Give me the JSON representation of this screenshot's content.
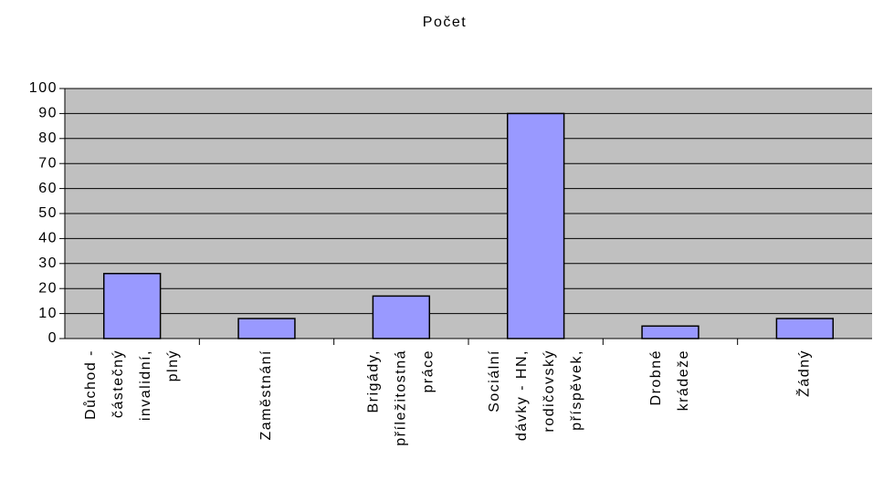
{
  "chart_data": {
    "type": "bar",
    "title": "Počet",
    "categories": [
      [
        "Důchod -",
        "částečný",
        "invalidní,",
        "plný"
      ],
      [
        "Zaměstnání"
      ],
      [
        "Brigády,",
        "příležitostná",
        "práce"
      ],
      [
        "Sociální",
        "dávky - HN,",
        "rodičovský",
        "příspěvek,"
      ],
      [
        "Drobné",
        "krádeže"
      ],
      [
        "Žádný"
      ]
    ],
    "values": [
      26,
      8,
      17,
      90,
      5,
      8
    ],
    "color": "#9999ff",
    "plot_background": "#c0c0c0",
    "ylim": [
      0,
      100
    ],
    "yticks": [
      0,
      10,
      20,
      30,
      40,
      50,
      60,
      70,
      80,
      90,
      100
    ],
    "grid": true
  }
}
